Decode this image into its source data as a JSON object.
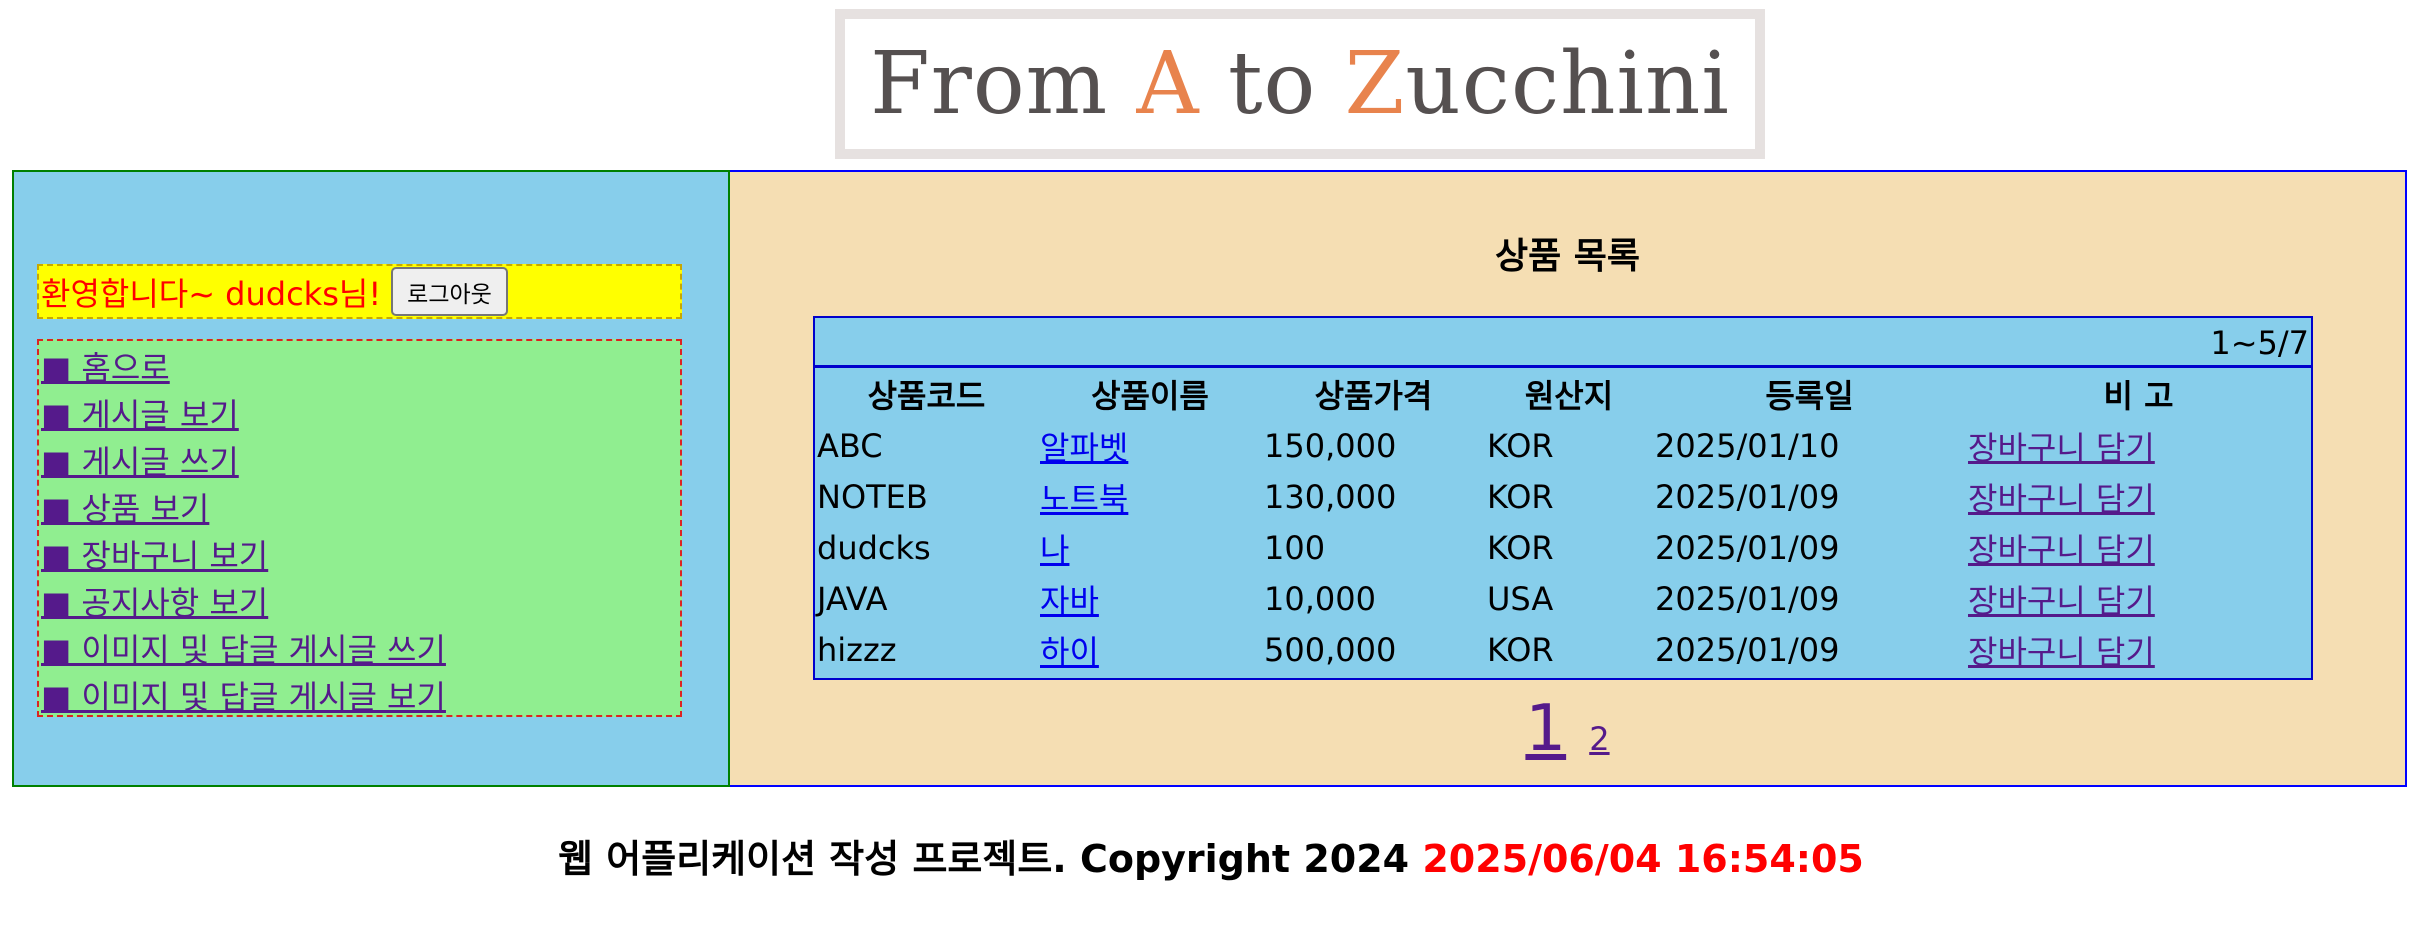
{
  "logo": {
    "part1": "From ",
    "part2": "A",
    "part3": " to ",
    "part4": "Z",
    "part5": "ucchini"
  },
  "colors": {
    "sidebar_bg": "#87ceeb",
    "content_bg": "#f5deb3",
    "welcome_bg": "#ffff00",
    "menu_bg": "#90ee90",
    "logo_accent": "#e8834d"
  },
  "sidebar": {
    "welcome": "환영합니다~ dudcks님!",
    "logout_label": "로그아웃",
    "menu": [
      "■ 홈으로",
      "■ 게시글 보기",
      "■ 게시글 쓰기",
      "■ 상품 보기",
      "■ 장바구니 보기",
      "■ 공지사항 보기",
      "■ 이미지 및 답글 게시글 쓰기",
      "■ 이미지 및 답글 게시글 보기"
    ]
  },
  "main": {
    "title": "상품 목록",
    "range": "1~5/7",
    "columns": [
      "상품코드",
      "상품이름",
      "상품가격",
      "원산지",
      "등록일",
      "비 고"
    ],
    "rows": [
      {
        "code": "ABC",
        "name": "알파벳",
        "price": "150,000",
        "origin": "KOR",
        "date": "2025/01/10",
        "action": "장바구니 담기"
      },
      {
        "code": "NOTEB",
        "name": "노트북",
        "price": "130,000",
        "origin": "KOR",
        "date": "2025/01/09",
        "action": "장바구니 담기"
      },
      {
        "code": "dudcks",
        "name": "나",
        "price": "100",
        "origin": "KOR",
        "date": "2025/01/09",
        "action": "장바구니 담기"
      },
      {
        "code": "JAVA",
        "name": "자바",
        "price": "10,000",
        "origin": "USA",
        "date": "2025/01/09",
        "action": "장바구니 담기"
      },
      {
        "code": "hizzz",
        "name": "하이",
        "price": "500,000",
        "origin": "KOR",
        "date": "2025/01/09",
        "action": "장바구니 담기"
      }
    ],
    "pagination": {
      "current": "1",
      "pages": [
        "2"
      ]
    }
  },
  "footer": {
    "text": "웹 어플리케이션 작성 프로젝트. Copyright 2024 ",
    "clock": "2025/06/04 16:54:05"
  }
}
